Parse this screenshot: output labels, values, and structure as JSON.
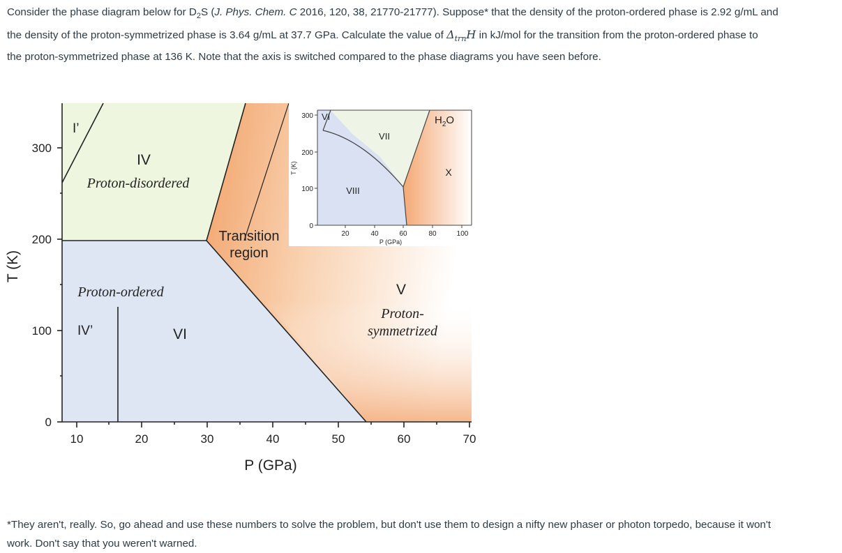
{
  "question": {
    "p1": "Consider the phase diagram below for D",
    "sub2": "2",
    "p2": "S (",
    "journal": "J. Phys. Chem. C",
    "p3": " 2016, 120, 38, 21770-21777).  Suppose* that the density of the proton-ordered phase is 2.92 g/mL and",
    "line2a": "the density of the proton-symmetrized phase is 3.64 g/mL at 37.7  GPa.  Calculate the value of ",
    "delta": "Δ",
    "trn": "trn",
    "H": "H",
    "line2b": " in kJ/mol for the transition from the proton-ordered phase to",
    "line3": "the proton-symmetrized phase at 136 K.  Note that the axis is switched compared to the phase diagrams you have seen before."
  },
  "footnote": {
    "line1": "*They aren't, really.  So, go ahead and use these numbers to solve the problem, but don't use them to design a nifty new phaser or photon torpedo, because it won't",
    "line2": "work.  Don't say that you weren't warned."
  },
  "diagram": {
    "xlabel": "P (GPa)",
    "ylabel": "T (K)",
    "xticks": [
      "10",
      "20",
      "30",
      "40",
      "50",
      "60",
      "70"
    ],
    "yticks": [
      "300",
      "200",
      "100",
      "0"
    ],
    "regions": {
      "i_prime": "I’",
      "iv": "IV",
      "proton_disordered": "Proton-disordered",
      "transition_1": "Transition",
      "transition_2": "region",
      "proton_ordered": "Proton-ordered",
      "iv_prime": "IV’",
      "vi": "VI",
      "v": "V",
      "proton_sym_1": "Proton-",
      "proton_sym_2": "symmetrized"
    },
    "colors": {
      "disordered": "#eef6e0",
      "ordered": "#dfe6f3",
      "symmetrized": "#f4b07c"
    }
  },
  "inset": {
    "xlabel": "P (GPa)",
    "ylabel": "T (K)",
    "xticks": [
      "20",
      "40",
      "60",
      "80",
      "100"
    ],
    "yticks": [
      "300",
      "200",
      "100",
      "0"
    ],
    "labels": {
      "vi": "VI",
      "vii": "VII",
      "viii": "VIII",
      "h2o": "H",
      "h2o_sub": "2",
      "h2o_o": "O",
      "x": "X"
    },
    "colors": {
      "vii": "#eef5e6",
      "viii": "#d9e1f3",
      "x": "#f5b07e"
    }
  }
}
